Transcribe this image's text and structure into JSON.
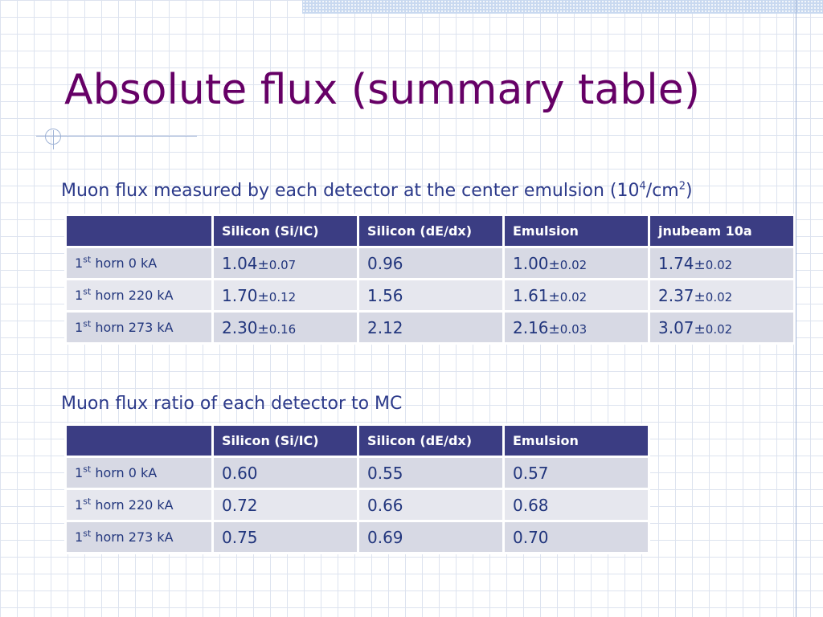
{
  "slide": {
    "title": "Absolute flux (summary table)"
  },
  "section1": {
    "caption_main": "Muon flux measured by each detector at the center emulsion (10",
    "caption_exp1": "4",
    "caption_mid": "/cm",
    "caption_exp2": "2",
    "caption_end": ")",
    "headers": [
      "",
      "Silicon (Si/IC)",
      "Silicon (dE/dx)",
      "Emulsion",
      "jnubeam 10a"
    ],
    "rows": [
      {
        "label_ordinal": "1",
        "label_suffix": "st",
        "label_rest": " horn 0 kA",
        "cells": [
          {
            "value": "1.04",
            "pm": "±",
            "err": "0.07"
          },
          {
            "value": "0.96",
            "pm": "",
            "err": ""
          },
          {
            "value": "1.00",
            "pm": "±",
            "err": "0.02"
          },
          {
            "value": "1.74",
            "pm": "±",
            "err": "0.02"
          }
        ]
      },
      {
        "label_ordinal": "1",
        "label_suffix": "st",
        "label_rest": " horn 220 kA",
        "cells": [
          {
            "value": "1.70",
            "pm": "±",
            "err": "0.12"
          },
          {
            "value": "1.56",
            "pm": "",
            "err": ""
          },
          {
            "value": "1.61",
            "pm": "±",
            "err": "0.02"
          },
          {
            "value": "2.37",
            "pm": "±",
            "err": "0.02"
          }
        ]
      },
      {
        "label_ordinal": "1",
        "label_suffix": "st",
        "label_rest": " horn 273 kA",
        "cells": [
          {
            "value": "2.30",
            "pm": "±",
            "err": "0.16"
          },
          {
            "value": "2.12",
            "pm": "",
            "err": ""
          },
          {
            "value": "2.16",
            "pm": "±",
            "err": "0.03"
          },
          {
            "value": "3.07",
            "pm": "±",
            "err": "0.02"
          }
        ]
      }
    ]
  },
  "section2": {
    "caption": "Muon flux ratio of each detector to MC",
    "headers": [
      "",
      "Silicon (Si/IC)",
      "Silicon (dE/dx)",
      "Emulsion"
    ],
    "rows": [
      {
        "label_ordinal": "1",
        "label_suffix": "st",
        "label_rest": " horn 0 kA",
        "cells": [
          "0.60",
          "0.55",
          "0.57"
        ]
      },
      {
        "label_ordinal": "1",
        "label_suffix": "st",
        "label_rest": " horn 220 kA",
        "cells": [
          "0.72",
          "0.66",
          "0.68"
        ]
      },
      {
        "label_ordinal": "1",
        "label_suffix": "st",
        "label_rest": " horn 273 kA",
        "cells": [
          "0.75",
          "0.69",
          "0.70"
        ]
      }
    ]
  },
  "colors": {
    "title": "#660066",
    "caption": "#2c3a8a",
    "header_bg": "#3b3d83",
    "cell_bg": "#d7d9e4",
    "cell_bg_alt": "#e6e7ee"
  }
}
